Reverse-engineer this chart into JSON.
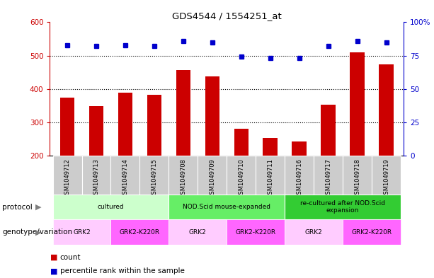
{
  "title": "GDS4544 / 1554251_at",
  "samples": [
    "GSM1049712",
    "GSM1049713",
    "GSM1049714",
    "GSM1049715",
    "GSM1049708",
    "GSM1049709",
    "GSM1049710",
    "GSM1049711",
    "GSM1049716",
    "GSM1049717",
    "GSM1049718",
    "GSM1049719"
  ],
  "counts": [
    375,
    348,
    388,
    382,
    456,
    438,
    280,
    253,
    243,
    352,
    510,
    473
  ],
  "percentile_ranks": [
    83,
    82,
    83,
    82,
    86,
    85,
    74,
    73,
    73,
    82,
    86,
    85
  ],
  "ylim_left": [
    200,
    600
  ],
  "ylim_right": [
    0,
    100
  ],
  "yticks_left": [
    200,
    300,
    400,
    500,
    600
  ],
  "yticks_right": [
    0,
    25,
    50,
    75,
    100
  ],
  "bar_color": "#cc0000",
  "dot_color": "#0000cc",
  "protocol_row": [
    {
      "label": "cultured",
      "span": [
        0,
        4
      ],
      "color": "#ccffcc"
    },
    {
      "label": "NOD.Scid mouse-expanded",
      "span": [
        4,
        8
      ],
      "color": "#66ee66"
    },
    {
      "label": "re-cultured after NOD.Scid\nexpansion",
      "span": [
        8,
        12
      ],
      "color": "#33cc33"
    }
  ],
  "genotype_row": [
    {
      "label": "GRK2",
      "span": [
        0,
        2
      ],
      "color": "#ffccff"
    },
    {
      "label": "GRK2-K220R",
      "span": [
        2,
        4
      ],
      "color": "#ff66ff"
    },
    {
      "label": "GRK2",
      "span": [
        4,
        6
      ],
      "color": "#ffccff"
    },
    {
      "label": "GRK2-K220R",
      "span": [
        6,
        8
      ],
      "color": "#ff66ff"
    },
    {
      "label": "GRK2",
      "span": [
        8,
        10
      ],
      "color": "#ffccff"
    },
    {
      "label": "GRK2-K220R",
      "span": [
        10,
        12
      ],
      "color": "#ff66ff"
    }
  ],
  "legend_items": [
    {
      "label": "count",
      "color": "#cc0000"
    },
    {
      "label": "percentile rank within the sample",
      "color": "#0000cc"
    }
  ],
  "left_axis_color": "#cc0000",
  "right_axis_color": "#0000cc",
  "sample_label_bg": "#cccccc",
  "bar_bottom": 200
}
